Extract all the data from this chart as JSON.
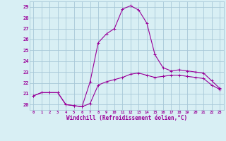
{
  "xlabel": "Windchill (Refroidissement éolien,°C)",
  "background_color": "#d8eff4",
  "grid_color": "#a8c8d8",
  "line_color": "#990099",
  "x_values": [
    0,
    1,
    2,
    3,
    4,
    5,
    6,
    7,
    8,
    9,
    10,
    11,
    12,
    13,
    14,
    15,
    16,
    17,
    18,
    19,
    20,
    21,
    22,
    23
  ],
  "curve1": [
    20.8,
    21.1,
    21.1,
    21.1,
    20.0,
    19.9,
    19.8,
    20.1,
    21.8,
    22.1,
    22.3,
    22.5,
    22.8,
    22.9,
    22.7,
    22.5,
    22.6,
    22.7,
    22.7,
    22.6,
    22.5,
    22.4,
    21.8,
    21.4
  ],
  "curve2": [
    20.8,
    21.1,
    21.1,
    21.1,
    20.0,
    19.9,
    19.8,
    22.1,
    25.7,
    26.5,
    27.0,
    28.8,
    29.1,
    28.7,
    27.5,
    24.6,
    23.4,
    23.1,
    23.2,
    23.1,
    23.0,
    22.9,
    22.2,
    21.5
  ],
  "ylim": [
    19.5,
    29.5
  ],
  "xlim": [
    -0.5,
    23.5
  ],
  "yticks": [
    20,
    21,
    22,
    23,
    24,
    25,
    26,
    27,
    28,
    29
  ],
  "xticks": [
    0,
    1,
    2,
    3,
    4,
    5,
    6,
    7,
    8,
    9,
    10,
    11,
    12,
    13,
    14,
    15,
    16,
    17,
    18,
    19,
    20,
    21,
    22,
    23
  ],
  "xtick_labels": [
    "0",
    "1",
    "2",
    "3",
    "4",
    "5",
    "6",
    "7",
    "8",
    "9",
    "10",
    "11",
    "12",
    "13",
    "14",
    "15",
    "16",
    "17",
    "18",
    "19",
    "20",
    "21",
    "22",
    "23"
  ]
}
